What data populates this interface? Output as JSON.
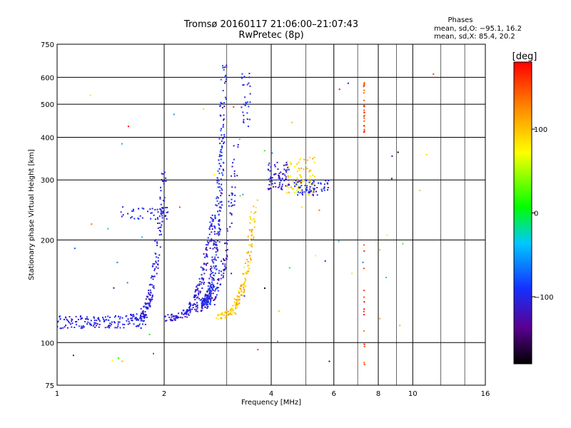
{
  "chart_data": {
    "type": "scatter",
    "title": "Tromsø 20160117 21:06:00–21:07:43",
    "subtitle": "RwPretec (8p)",
    "xlabel": "Frequency [MHz]",
    "ylabel": "Stationary phase Virtual Height [km]",
    "x_scale": "log",
    "y_scale": "log",
    "xlim": [
      1,
      16
    ],
    "ylim": [
      75,
      750
    ],
    "x_ticks": [
      1,
      2,
      4,
      6,
      8,
      10,
      16
    ],
    "x_tick_labels": [
      "1",
      "2",
      "4",
      "6",
      "8",
      "10",
      "16"
    ],
    "y_ticks": [
      75,
      100,
      200,
      300,
      400,
      500,
      600,
      750
    ],
    "y_tick_labels": [
      "75",
      "100",
      "200",
      "300",
      "400",
      "500",
      "600",
      "750"
    ],
    "grid": true,
    "stats": {
      "header": "Phases",
      "line_o": "mean, sd,O: −95.1, 16.2",
      "line_x": "mean, sd,X:  85.4, 20.2"
    },
    "colorbar": {
      "label": "[deg]",
      "range": [
        -180,
        180
      ],
      "ticks": [
        100,
        0,
        -100
      ],
      "tick_labels": [
        "100",
        "0",
        "−100"
      ]
    },
    "point_groups": [
      {
        "desc": "low-F layer",
        "f": [
          1.0,
          1.8
        ],
        "h": [
          110,
          120
        ],
        "n": 150,
        "phase": -100,
        "jit": 18,
        "curve": "flat"
      },
      {
        "desc": "E/F1 trace",
        "f": [
          1.6,
          2.0
        ],
        "h": [
          118,
          330
        ],
        "n": 160,
        "phase": -105,
        "jit": 18,
        "curve": "cusp"
      },
      {
        "desc": "F1 spread",
        "f": [
          1.5,
          2.05
        ],
        "h": [
          230,
          250
        ],
        "n": 50,
        "phase": -100,
        "jit": 18,
        "curve": "flat"
      },
      {
        "desc": "F2 o-trace low",
        "f": [
          2.0,
          2.75
        ],
        "h": [
          118,
          240
        ],
        "n": 170,
        "phase": -110,
        "jit": 20,
        "curve": "cusp"
      },
      {
        "desc": "F2 o-trace",
        "f": [
          2.5,
          2.95
        ],
        "h": [
          130,
          650
        ],
        "n": 300,
        "phase": -100,
        "jit": 30,
        "curve": "cusp"
      },
      {
        "desc": "F2 wide",
        "f": [
          2.4,
          3.2
        ],
        "h": [
          125,
          380
        ],
        "n": 120,
        "phase": -110,
        "jit": 25,
        "curve": "cusp"
      },
      {
        "desc": "x-trace",
        "f": [
          2.8,
          3.6
        ],
        "h": [
          120,
          260
        ],
        "n": 160,
        "phase": 100,
        "jit": 25,
        "curve": "cusp"
      },
      {
        "desc": "upper",
        "f": [
          3.3,
          3.5
        ],
        "h": [
          430,
          620
        ],
        "n": 30,
        "phase": -100,
        "jit": 20,
        "curve": "flat"
      },
      {
        "desc": "mid",
        "f": [
          3.9,
          4.5
        ],
        "h": [
          280,
          340
        ],
        "n": 70,
        "phase": -110,
        "jit": 15,
        "curve": "flat"
      },
      {
        "desc": "mid-x",
        "f": [
          4.4,
          5.3
        ],
        "h": [
          270,
          350
        ],
        "n": 80,
        "phase": 90,
        "jit": 30,
        "curve": "flat"
      },
      {
        "desc": "mid-tail",
        "f": [
          4.6,
          5.8
        ],
        "h": [
          270,
          300
        ],
        "n": 70,
        "phase": -100,
        "jit": 20,
        "curve": "flat"
      },
      {
        "desc": "orange column",
        "f": [
          7.28,
          7.32
        ],
        "h": [
          410,
          580
        ],
        "n": 25,
        "phase": 150,
        "jit": 10,
        "curve": "flat"
      },
      {
        "desc": "stray low",
        "f": [
          7.28,
          7.32
        ],
        "h": [
          82,
          205
        ],
        "n": 14,
        "phase": 160,
        "jit": 30,
        "curve": "flat"
      },
      {
        "desc": "scattered",
        "f": [
          1.05,
          12.0
        ],
        "h": [
          85,
          650
        ],
        "n": 60,
        "phase": 0,
        "jit": 180,
        "curve": "random"
      }
    ]
  }
}
